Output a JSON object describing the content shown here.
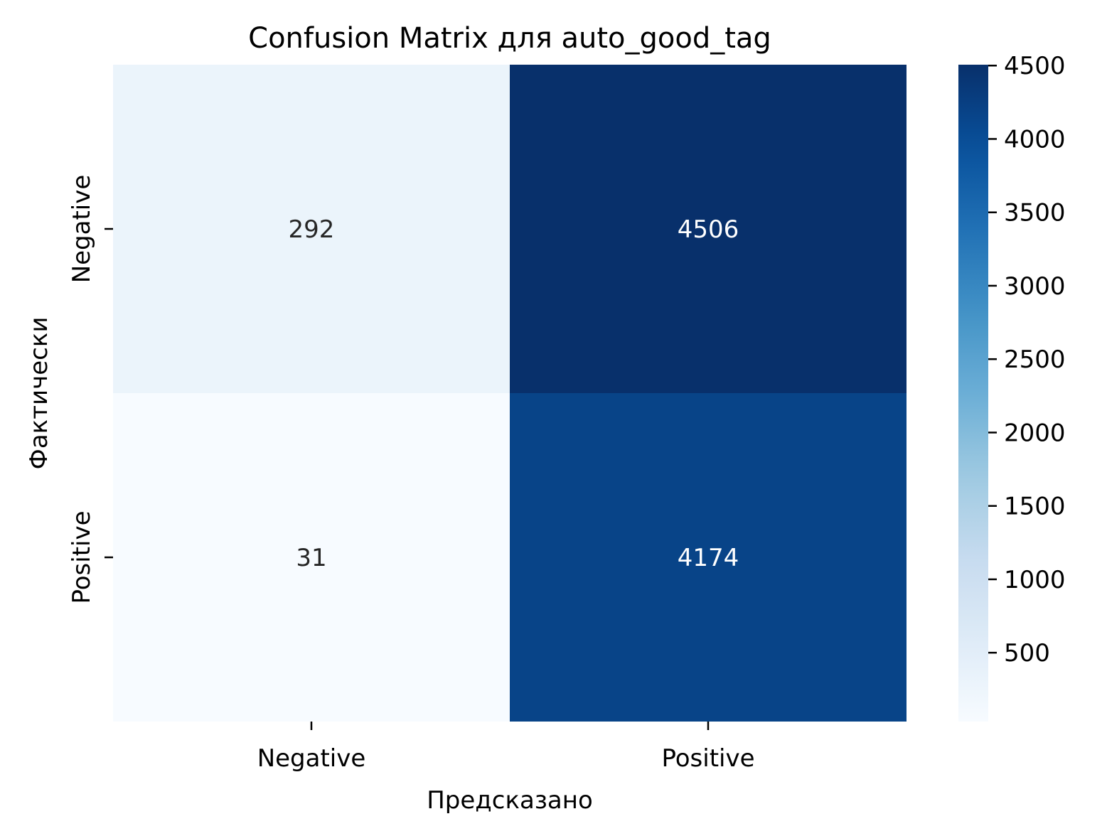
{
  "chart_data": {
    "type": "heatmap",
    "title": "Confusion Matrix для auto_good_tag",
    "xlabel": "Предсказано",
    "ylabel": "Фактически",
    "x_categories": [
      "Negative",
      "Positive"
    ],
    "y_categories": [
      "Negative",
      "Positive"
    ],
    "values": [
      [
        292,
        4506
      ],
      [
        31,
        4174
      ]
    ],
    "colormap": "Blues",
    "color_range": [
      31,
      4506
    ],
    "colorbar_ticks": [
      500,
      1000,
      1500,
      2000,
      2500,
      3000,
      3500,
      4000,
      4500
    ],
    "annotation_colors": {
      "light_cell": "#262626",
      "dark_cell": "#ffffff"
    }
  }
}
